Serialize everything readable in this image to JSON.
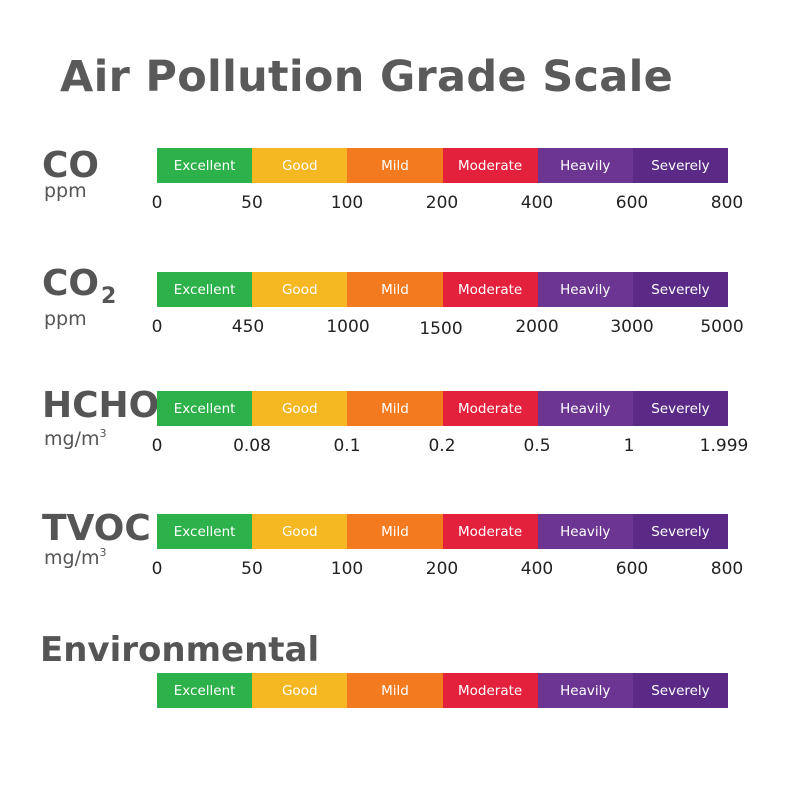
{
  "title": "Air Pollution Grade Scale",
  "colors": {
    "excellent": "#2DB14A",
    "good": "#F5B823",
    "mild": "#F47A20",
    "moderate": "#E4213C",
    "heavily": "#6B3591",
    "severely": "#5A2A86"
  },
  "grades": [
    "Excellent",
    "Good",
    "Mild",
    "Moderate",
    "Heavily",
    "Severely"
  ],
  "rows": [
    {
      "name": "CO",
      "unit": "ppm",
      "ticks": [
        "0",
        "50",
        "100",
        "200",
        "400",
        "600",
        "800"
      ]
    },
    {
      "name": "CO",
      "name_sub": "2",
      "unit": "ppm",
      "ticks": [
        "0",
        "450",
        "1000",
        "1500",
        "2000",
        "3000",
        "5000"
      ]
    },
    {
      "name": "HCHO",
      "unit": "mg/m",
      "unit_sup": "3",
      "ticks": [
        "0",
        "0.08",
        "0.1",
        "0.2",
        "0.5",
        "1",
        "1.999"
      ]
    },
    {
      "name": "TVOC",
      "unit": "mg/m",
      "unit_sup": "3",
      "ticks": [
        "0",
        "50",
        "100",
        "200",
        "400",
        "600",
        "800"
      ]
    }
  ],
  "environmental": {
    "name": "Environmental"
  }
}
